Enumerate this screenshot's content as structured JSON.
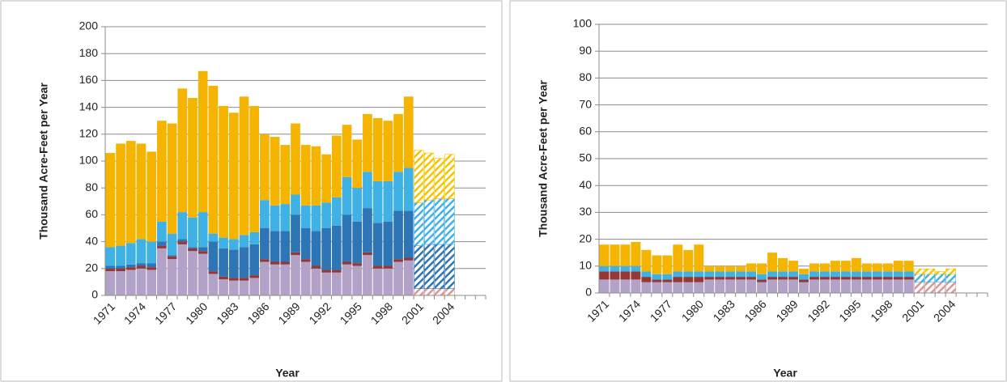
{
  "chart_data": [
    {
      "type": "bar",
      "stacked": true,
      "y_label": "Thousand Acre-Feet per Year",
      "x_label": "Year",
      "ylim": [
        0,
        200
      ],
      "yticks": [
        0,
        20,
        40,
        60,
        80,
        100,
        120,
        140,
        160,
        180,
        200
      ],
      "grid": true,
      "categories": [
        "1971",
        null,
        null,
        "1974",
        null,
        null,
        "1977",
        null,
        null,
        "1980",
        null,
        null,
        "1983",
        null,
        null,
        "1986",
        null,
        null,
        "1989",
        null,
        null,
        "1992",
        null,
        null,
        "1995",
        null,
        null,
        "1998",
        null,
        null,
        "2001",
        null,
        null,
        "2004",
        null,
        null,
        null
      ],
      "series": [
        {
          "color": "#b3a2c7",
          "values": [
            18,
            18,
            19,
            20,
            19,
            35,
            27,
            38,
            33,
            31,
            16,
            12,
            11,
            11,
            13,
            25,
            23,
            23,
            30,
            25,
            20,
            17,
            17,
            23,
            22,
            30,
            20,
            20,
            25,
            26,
            null,
            null,
            null,
            null,
            null,
            null,
            null
          ]
        },
        {
          "color": "#953735",
          "values": [
            2,
            2,
            2,
            2,
            2,
            2,
            2,
            2,
            2,
            2,
            2,
            2,
            2,
            2,
            2,
            2,
            2,
            2,
            2,
            2,
            2,
            2,
            2,
            2,
            2,
            2,
            2,
            2,
            2,
            2,
            null,
            null,
            null,
            null,
            null,
            null,
            null
          ]
        },
        {
          "color": "#2e75b6",
          "values": [
            2,
            2,
            2,
            2,
            3,
            3,
            1,
            2,
            1,
            3,
            22,
            21,
            21,
            23,
            23,
            23,
            23,
            23,
            28,
            23,
            26,
            31,
            33,
            35,
            31,
            33,
            32,
            33,
            36,
            35,
            null,
            null,
            null,
            null,
            null,
            null,
            null
          ]
        },
        {
          "color": "#3fb1e5",
          "values": [
            14,
            15,
            16,
            18,
            16,
            15,
            16,
            20,
            22,
            26,
            6,
            8,
            8,
            9,
            9,
            21,
            19,
            20,
            15,
            17,
            19,
            19,
            21,
            28,
            25,
            27,
            31,
            30,
            29,
            32,
            null,
            null,
            null,
            null,
            null,
            null,
            null
          ]
        },
        {
          "color": "#f5b400",
          "values": [
            70,
            76,
            76,
            71,
            67,
            75,
            82,
            92,
            89,
            105,
            110,
            98,
            94,
            103,
            94,
            49,
            51,
            44,
            53,
            45,
            44,
            36,
            46,
            39,
            36,
            43,
            47,
            45,
            43,
            53,
            null,
            null,
            null,
            null,
            null,
            null,
            null
          ]
        },
        {
          "color": "#d99694",
          "pattern": "hatch",
          "values": [
            null,
            null,
            null,
            null,
            null,
            null,
            null,
            null,
            null,
            null,
            null,
            null,
            null,
            null,
            null,
            null,
            null,
            null,
            null,
            null,
            null,
            null,
            null,
            null,
            null,
            null,
            null,
            null,
            null,
            null,
            5,
            5,
            5,
            5,
            null,
            null,
            null
          ]
        },
        {
          "color": "#2e75b6",
          "pattern": "hatch",
          "values": [
            null,
            null,
            null,
            null,
            null,
            null,
            null,
            null,
            null,
            null,
            null,
            null,
            null,
            null,
            null,
            null,
            null,
            null,
            null,
            null,
            null,
            null,
            null,
            null,
            null,
            null,
            null,
            null,
            null,
            null,
            32,
            33,
            33,
            33,
            null,
            null,
            null
          ]
        },
        {
          "color": "#3fb1e5",
          "pattern": "hatch",
          "values": [
            null,
            null,
            null,
            null,
            null,
            null,
            null,
            null,
            null,
            null,
            null,
            null,
            null,
            null,
            null,
            null,
            null,
            null,
            null,
            null,
            null,
            null,
            null,
            null,
            null,
            null,
            null,
            null,
            null,
            null,
            32,
            33,
            34,
            34,
            null,
            null,
            null
          ]
        },
        {
          "color": "#f5c400",
          "pattern": "hatch",
          "values": [
            null,
            null,
            null,
            null,
            null,
            null,
            null,
            null,
            null,
            null,
            null,
            null,
            null,
            null,
            null,
            null,
            null,
            null,
            null,
            null,
            null,
            null,
            null,
            null,
            null,
            null,
            null,
            null,
            null,
            null,
            39,
            35,
            30,
            33,
            null,
            null,
            null
          ]
        }
      ]
    },
    {
      "type": "bar",
      "stacked": true,
      "y_label": "Thousand Acre-Feet per Year",
      "x_label": "Year",
      "ylim": [
        0,
        100
      ],
      "yticks": [
        0,
        10,
        20,
        30,
        40,
        50,
        60,
        70,
        80,
        90,
        100
      ],
      "grid": true,
      "categories": [
        "1971",
        null,
        null,
        "1974",
        null,
        null,
        "1977",
        null,
        null,
        "1980",
        null,
        null,
        "1983",
        null,
        null,
        "1986",
        null,
        null,
        "1989",
        null,
        null,
        "1992",
        null,
        null,
        "1995",
        null,
        null,
        "1998",
        null,
        null,
        "2001",
        null,
        null,
        "2004",
        null,
        null,
        null
      ],
      "series": [
        {
          "color": "#b3a2c7",
          "values": [
            5,
            5,
            5,
            5,
            4,
            4,
            4,
            4,
            4,
            4,
            5,
            5,
            5,
            5,
            5,
            4,
            5,
            5,
            5,
            4,
            5,
            5,
            5,
            5,
            5,
            5,
            5,
            5,
            5,
            5,
            null,
            null,
            null,
            null,
            null,
            null,
            null
          ]
        },
        {
          "color": "#953735",
          "values": [
            3,
            3,
            3,
            3,
            2,
            1,
            1,
            2,
            2,
            2,
            1,
            1,
            1,
            1,
            1,
            1,
            1,
            1,
            1,
            1,
            1,
            1,
            1,
            1,
            1,
            1,
            1,
            1,
            1,
            1,
            null,
            null,
            null,
            null,
            null,
            null,
            null
          ]
        },
        {
          "color": "#3fb1e5",
          "values": [
            2,
            2,
            2,
            2,
            2,
            2,
            2,
            2,
            2,
            2,
            2,
            2,
            2,
            2,
            2,
            2,
            2,
            2,
            2,
            2,
            2,
            2,
            2,
            2,
            2,
            2,
            2,
            2,
            2,
            2,
            null,
            null,
            null,
            null,
            null,
            null,
            null
          ]
        },
        {
          "color": "#f5b400",
          "values": [
            8,
            8,
            8,
            9,
            8,
            7,
            7,
            10,
            8,
            10,
            2,
            2,
            2,
            2,
            3,
            4,
            7,
            5,
            4,
            2,
            3,
            3,
            4,
            4,
            5,
            3,
            3,
            3,
            4,
            4,
            null,
            null,
            null,
            null,
            null,
            null,
            null
          ]
        },
        {
          "color": "#d99694",
          "pattern": "hatch",
          "values": [
            null,
            null,
            null,
            null,
            null,
            null,
            null,
            null,
            null,
            null,
            null,
            null,
            null,
            null,
            null,
            null,
            null,
            null,
            null,
            null,
            null,
            null,
            null,
            null,
            null,
            null,
            null,
            null,
            null,
            null,
            4,
            4,
            4,
            4,
            null,
            null,
            null
          ]
        },
        {
          "color": "#3fb1e5",
          "pattern": "hatch",
          "values": [
            null,
            null,
            null,
            null,
            null,
            null,
            null,
            null,
            null,
            null,
            null,
            null,
            null,
            null,
            null,
            null,
            null,
            null,
            null,
            null,
            null,
            null,
            null,
            null,
            null,
            null,
            null,
            null,
            null,
            null,
            3,
            3,
            3,
            3,
            null,
            null,
            null
          ]
        },
        {
          "color": "#f5c400",
          "pattern": "hatch",
          "values": [
            null,
            null,
            null,
            null,
            null,
            null,
            null,
            null,
            null,
            null,
            null,
            null,
            null,
            null,
            null,
            null,
            null,
            null,
            null,
            null,
            null,
            null,
            null,
            null,
            null,
            null,
            null,
            null,
            null,
            null,
            2,
            2,
            1,
            2,
            null,
            null,
            null
          ]
        }
      ]
    }
  ]
}
